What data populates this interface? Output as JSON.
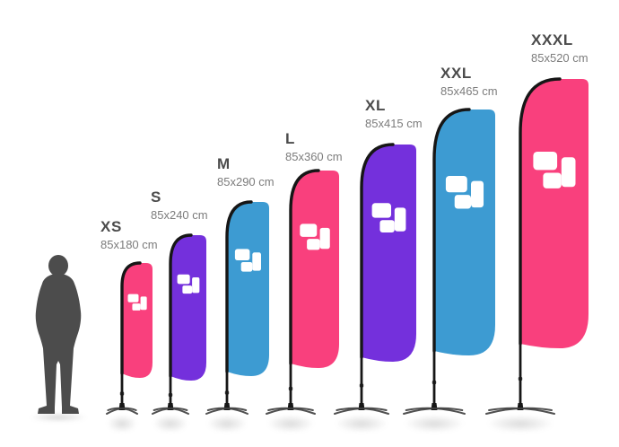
{
  "flags": [
    {
      "label": "XS",
      "size": "85x180 cm",
      "color": "#F9407D"
    },
    {
      "label": "S",
      "size": "85x240 cm",
      "color": "#7430DC"
    },
    {
      "label": "M",
      "size": "85x290 cm",
      "color": "#3D9BD2"
    },
    {
      "label": "L",
      "size": "85x360 cm",
      "color": "#F9407D"
    },
    {
      "label": "XL",
      "size": "85x415 cm",
      "color": "#7430DC"
    },
    {
      "label": "XXL",
      "size": "85x465 cm",
      "color": "#3D9BD2"
    },
    {
      "label": "XXXL",
      "size": "85x520 cm",
      "color": "#F9407D"
    }
  ],
  "colors": {
    "pole": "#161616",
    "stand": "#3d3d3d",
    "silhouette": "#4c4c4c",
    "label_text": "#4b4b4b",
    "size_text": "#7c7c7c",
    "logo": "#ffffff"
  }
}
